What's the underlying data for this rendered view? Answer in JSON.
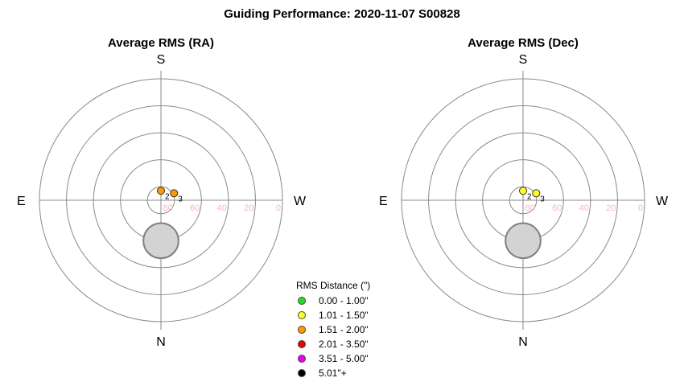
{
  "title": "Guiding Performance: 2020-11-07 S00828",
  "legend": {
    "title": "RMS Distance (\")",
    "items": [
      {
        "label": "0.00 - 1.00\"",
        "color": "#22dd22"
      },
      {
        "label": "1.01 - 1.50\"",
        "color": "#ffff22"
      },
      {
        "label": "1.51 - 2.00\"",
        "color": "#ff9900"
      },
      {
        "label": "2.01 - 3.50\"",
        "color": "#ee0000"
      },
      {
        "label": "3.51 - 5.00\"",
        "color": "#ee00ee"
      },
      {
        "label": "5.01\"+",
        "color": "#000000"
      }
    ]
  },
  "chart_data": [
    {
      "type": "scatter",
      "coordinate_system": "polar (azimuth/altitude)",
      "title": "Average RMS (RA)",
      "directions": {
        "top": "S",
        "bottom": "N",
        "left": "E",
        "right": "W"
      },
      "radial_tick_labels": [
        "80",
        "60",
        "40",
        "20",
        "0"
      ],
      "altitude_range": [
        0,
        90
      ],
      "obstruction": {
        "azimuth_deg": 0,
        "altitude_deg": 60,
        "radius_deg": 13
      },
      "points": [
        {
          "label": "2",
          "azimuth_deg": 180,
          "altitude_deg": 83,
          "rms_class": "1.51 - 2.00\"",
          "color": "#ff9900"
        },
        {
          "label": "3",
          "azimuth_deg": 242,
          "altitude_deg": 79,
          "rms_class": "1.51 - 2.00\"",
          "color": "#ff9900"
        }
      ]
    },
    {
      "type": "scatter",
      "coordinate_system": "polar (azimuth/altitude)",
      "title": "Average RMS (Dec)",
      "directions": {
        "top": "S",
        "bottom": "N",
        "left": "E",
        "right": "W"
      },
      "radial_tick_labels": [
        "80",
        "60",
        "40",
        "20",
        "0"
      ],
      "altitude_range": [
        0,
        90
      ],
      "obstruction": {
        "azimuth_deg": 0,
        "altitude_deg": 60,
        "radius_deg": 13
      },
      "points": [
        {
          "label": "2",
          "azimuth_deg": 180,
          "altitude_deg": 83,
          "rms_class": "1.01 - 1.50\"",
          "color": "#ffff22"
        },
        {
          "label": "3",
          "azimuth_deg": 242,
          "altitude_deg": 79,
          "rms_class": "1.01 - 1.50\"",
          "color": "#ffff22"
        }
      ]
    }
  ]
}
